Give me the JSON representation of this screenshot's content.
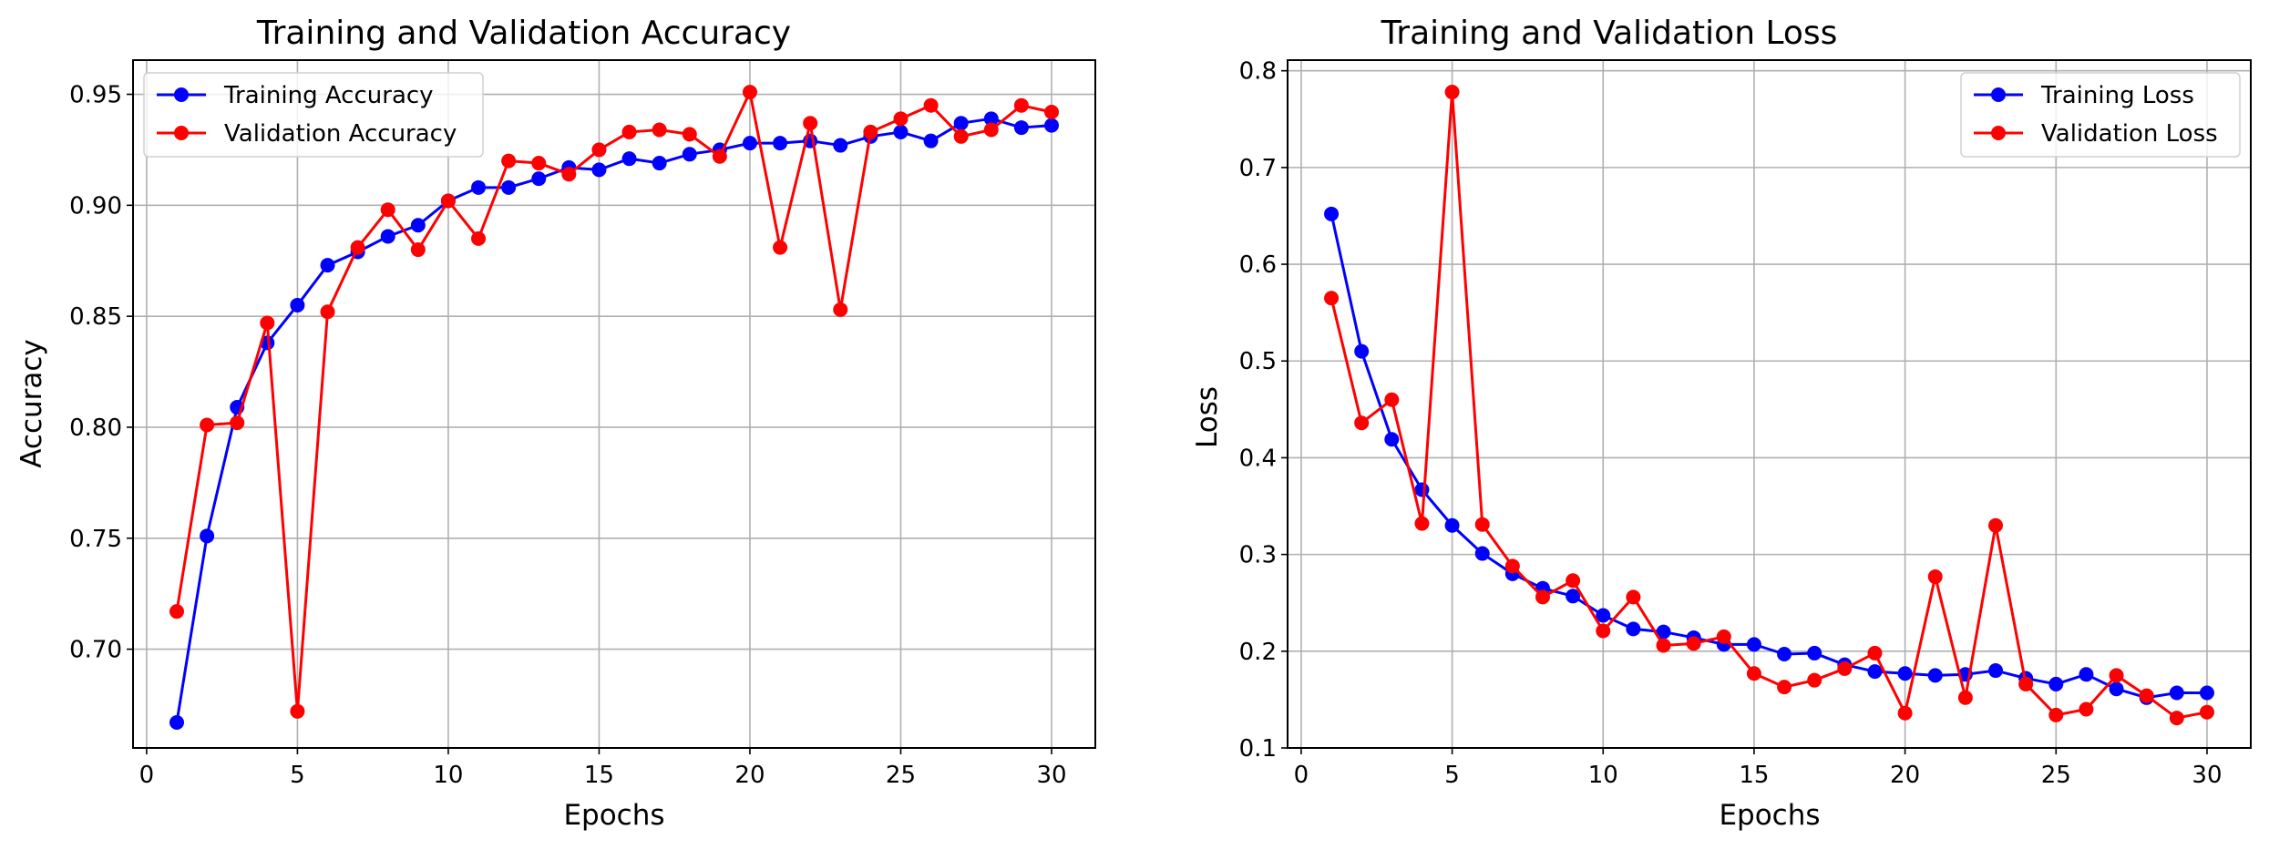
{
  "chart_data": [
    {
      "type": "line",
      "title": "Training and Validation Accuracy",
      "xlabel": "Epochs",
      "ylabel": "Accuracy",
      "xlim": [
        -0.45,
        31.45
      ],
      "ylim": [
        0.6555,
        0.9654
      ],
      "xticks": [
        0,
        5,
        10,
        15,
        20,
        25,
        30
      ],
      "yticks": [
        0.7,
        0.75,
        0.8,
        0.85,
        0.9,
        0.95
      ],
      "ytick_labels": [
        "0.70",
        "0.75",
        "0.80",
        "0.85",
        "0.90",
        "0.95"
      ],
      "grid": true,
      "legend_position": "upper-left",
      "x": [
        1,
        2,
        3,
        4,
        5,
        6,
        7,
        8,
        9,
        10,
        11,
        12,
        13,
        14,
        15,
        16,
        17,
        18,
        19,
        20,
        21,
        22,
        23,
        24,
        25,
        26,
        27,
        28,
        29,
        30
      ],
      "series": [
        {
          "name": "Training Accuracy",
          "color": "#0000ff",
          "values": [
            0.667,
            0.751,
            0.809,
            0.838,
            0.855,
            0.873,
            0.879,
            0.886,
            0.891,
            0.902,
            0.908,
            0.908,
            0.912,
            0.917,
            0.916,
            0.921,
            0.919,
            0.923,
            0.925,
            0.928,
            0.928,
            0.929,
            0.927,
            0.931,
            0.933,
            0.929,
            0.937,
            0.939,
            0.935,
            0.936
          ]
        },
        {
          "name": "Validation Accuracy",
          "color": "#ff0000",
          "values": [
            0.717,
            0.801,
            0.802,
            0.847,
            0.672,
            0.852,
            0.881,
            0.898,
            0.88,
            0.902,
            0.885,
            0.92,
            0.919,
            0.914,
            0.925,
            0.933,
            0.934,
            0.932,
            0.922,
            0.951,
            0.881,
            0.937,
            0.853,
            0.933,
            0.939,
            0.945,
            0.931,
            0.934,
            0.945,
            0.942
          ]
        }
      ]
    },
    {
      "type": "line",
      "title": "Training and Validation Loss",
      "xlabel": "Epochs",
      "ylabel": "Loss",
      "xlim": [
        -0.45,
        31.45
      ],
      "ylim": [
        0.1,
        0.811
      ],
      "xticks": [
        0,
        5,
        10,
        15,
        20,
        25,
        30
      ],
      "yticks": [
        0.1,
        0.2,
        0.3,
        0.4,
        0.5,
        0.6,
        0.7,
        0.8
      ],
      "ytick_labels": [
        "0.1",
        "0.2",
        "0.3",
        "0.4",
        "0.5",
        "0.6",
        "0.7",
        "0.8"
      ],
      "grid": true,
      "legend_position": "upper-right",
      "x": [
        1,
        2,
        3,
        4,
        5,
        6,
        7,
        8,
        9,
        10,
        11,
        12,
        13,
        14,
        15,
        16,
        17,
        18,
        19,
        20,
        21,
        22,
        23,
        24,
        25,
        26,
        27,
        28,
        29,
        30
      ],
      "series": [
        {
          "name": "Training Loss",
          "color": "#0000ff",
          "values": [
            0.652,
            0.51,
            0.419,
            0.367,
            0.33,
            0.301,
            0.28,
            0.265,
            0.257,
            0.237,
            0.223,
            0.22,
            0.214,
            0.207,
            0.207,
            0.197,
            0.198,
            0.186,
            0.179,
            0.177,
            0.175,
            0.176,
            0.18,
            0.172,
            0.166,
            0.176,
            0.161,
            0.152,
            0.157,
            0.157
          ]
        },
        {
          "name": "Validation Loss",
          "color": "#ff0000",
          "values": [
            0.565,
            0.436,
            0.46,
            0.332,
            0.778,
            0.331,
            0.288,
            0.256,
            0.273,
            0.221,
            0.256,
            0.206,
            0.208,
            0.215,
            0.177,
            0.163,
            0.17,
            0.182,
            0.198,
            0.136,
            0.277,
            0.152,
            0.33,
            0.166,
            0.134,
            0.14,
            0.175,
            0.154,
            0.131,
            0.137
          ]
        }
      ]
    }
  ]
}
